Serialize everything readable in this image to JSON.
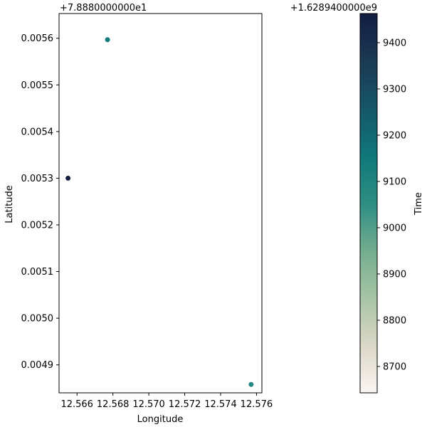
{
  "chart_data": {
    "type": "scatter",
    "xlabel": "Longitude",
    "ylabel": "Latitude",
    "x_offset_label": "",
    "y_offset_label": "+7.8880000000e1",
    "xlim": [
      12.565,
      12.5763
    ],
    "ylim": [
      0.00484,
      0.005653
    ],
    "x_ticks": [
      12.566,
      12.568,
      12.57,
      12.572,
      12.574,
      12.576
    ],
    "x_tick_labels": [
      "12.566",
      "12.568",
      "12.570",
      "12.572",
      "12.574",
      "12.576"
    ],
    "y_ticks": [
      0.0049,
      0.005,
      0.0051,
      0.0052,
      0.0053,
      0.0054,
      0.0055,
      0.0056
    ],
    "y_tick_labels": [
      "0.0049",
      "0.0050",
      "0.0051",
      "0.0052",
      "0.0053",
      "0.0054",
      "0.0055",
      "0.0056"
    ],
    "points": [
      {
        "x": 12.5655,
        "y": 0.0053,
        "c": 9460
      },
      {
        "x": 12.5677,
        "y": 0.005597,
        "c": 9130
      },
      {
        "x": 12.5757,
        "y": 0.004858,
        "c": 9080
      }
    ],
    "grid": false,
    "colorbar": {
      "label": "Time",
      "offset_label": "+1.6289400000e9",
      "range": [
        8643,
        9463
      ],
      "ticks": [
        8700,
        8800,
        8900,
        9000,
        9100,
        9200,
        9300,
        9400
      ],
      "tick_labels": [
        "8700",
        "8800",
        "8900",
        "9000",
        "9100",
        "9200",
        "9300",
        "9400"
      ],
      "colormap": [
        "#fbf5f2",
        "#dad7c7",
        "#a7c4a6",
        "#72ad8e",
        "#2d8e83",
        "#0f787a",
        "#155668",
        "#1b3954",
        "#131d40"
      ]
    }
  }
}
